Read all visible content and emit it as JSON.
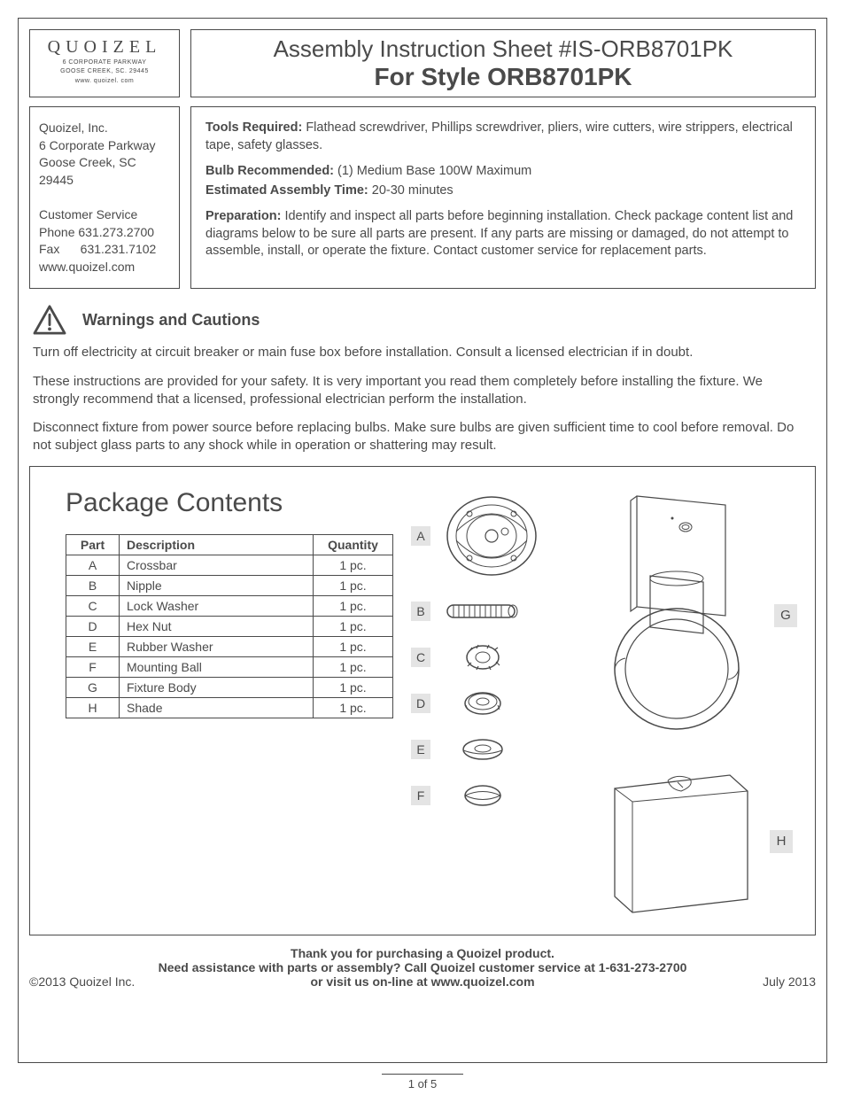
{
  "logo": {
    "brand": "QUOIZEL",
    "addr1": "6 CORPORATE PARKWAY",
    "addr2": "GOOSE CREEK, SC. 29445",
    "web": "www. quoizel. com"
  },
  "title": {
    "line1": "Assembly Instruction Sheet #IS-ORB8701PK",
    "line2": "For Style ORB8701PK"
  },
  "address": {
    "company": "Quoizel, Inc.",
    "street": "6 Corporate Parkway",
    "city": "Goose Creek, SC",
    "zip": "29445",
    "cs_label": "Customer  Service",
    "phone": "Phone  631.273.2700",
    "fax": "Fax      631.231.7102",
    "web": "www.quoizel.com"
  },
  "info": {
    "tools_label": "Tools Required:",
    "tools_text": " Flathead screwdriver, Phillips screwdriver, pliers, wire cutters, wire strippers, electrical tape, safety glasses.",
    "bulb_label": "Bulb Recommended:",
    "bulb_text": "  (1) Medium Base 100W Maximum",
    "time_label": "Estimated Assembly Time:",
    "time_text": " 20-30 minutes",
    "prep_label": "Preparation:",
    "prep_text": " Identify and inspect all parts before beginning installation. Check package content list and diagrams below to be sure all parts are present. If any parts are missing or damaged, do not attempt to assemble, install, or operate the fixture. Contact customer service for replacement parts."
  },
  "warnings": {
    "title": "Warnings and Cautions",
    "p1": "Turn off electricity at circuit breaker or main fuse box before installation. Consult a licensed electrician if in doubt.",
    "p2": "These instructions are provided for your safety. It is very important you read them completely before installing the fixture. We strongly recommend that a licensed, professional electrician perform the installation.",
    "p3": "Disconnect fixture from power source before replacing bulbs. Make sure bulbs are given sufficient time to cool before removal. Do not subject glass parts to any shock while in operation or shattering may result."
  },
  "package": {
    "title": "Package Contents",
    "columns": [
      "Part",
      "Description",
      "Quantity"
    ],
    "rows": [
      [
        "A",
        "Crossbar",
        "1 pc."
      ],
      [
        "B",
        "Nipple",
        "1 pc."
      ],
      [
        "C",
        "Lock Washer",
        "1 pc."
      ],
      [
        "D",
        "Hex Nut",
        "1 pc."
      ],
      [
        "E",
        "Rubber Washer",
        "1 pc."
      ],
      [
        "F",
        "Mounting Ball",
        "1 pc."
      ],
      [
        "G",
        "Fixture Body",
        "1 pc."
      ],
      [
        "H",
        "Shade",
        "1 pc."
      ]
    ],
    "labels": {
      "A": "A",
      "B": "B",
      "C": "C",
      "D": "D",
      "E": "E",
      "F": "F",
      "G": "G",
      "H": "H"
    }
  },
  "footer": {
    "line1": "Thank you for purchasing a Quoizel product.",
    "line2": "Need assistance with parts or assembly? Call Quoizel customer service at 1-631-273-2700",
    "line3": "or visit us on-line at www.quoizel.com",
    "copyright": "2013  Quoizel Inc.",
    "date": "July 2013",
    "page": "1 of 5"
  },
  "colors": {
    "text": "#4a4a4a",
    "border": "#4a4a4a",
    "label_bg": "#e4e4e4",
    "background": "#ffffff"
  }
}
